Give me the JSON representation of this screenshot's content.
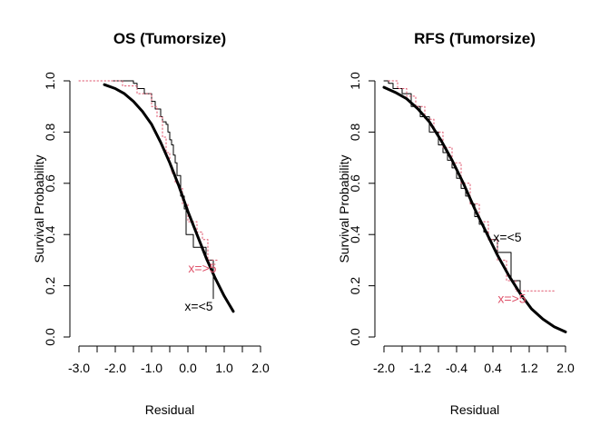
{
  "colors": {
    "fitted": "#000000",
    "group_lt5": "#000000",
    "group_ge5": "#DF536B"
  },
  "chart_data": [
    {
      "type": "line",
      "title": "OS (Tumorsize)",
      "xlabel": "Residual",
      "ylabel": "Survival Probability",
      "xlim": [
        -3.0,
        2.0
      ],
      "ylim": [
        0.0,
        1.0
      ],
      "x_ticks": [
        -3.0,
        -2.5,
        -2.0,
        -1.5,
        -1.0,
        -0.5,
        0.0,
        0.5,
        1.0,
        1.5,
        2.0
      ],
      "x_tick_labels": [
        "-3.0",
        "-2.0",
        "-1.0",
        "0.0",
        "1.0",
        "2.0"
      ],
      "x_tick_label_values": [
        -3.0,
        -2.0,
        -1.0,
        0.0,
        1.0,
        2.0
      ],
      "y_ticks": [
        0.0,
        0.2,
        0.4,
        0.6,
        0.8,
        1.0
      ],
      "y_tick_labels": [
        "0.0",
        "0.2",
        "0.4",
        "0.6",
        "0.8",
        "1.0"
      ],
      "grid": false,
      "series": [
        {
          "name": "x=<5",
          "style": "step",
          "color_key": "group_lt5",
          "x": [
            -2.1,
            -1.5,
            -1.4,
            -1.2,
            -1.0,
            -0.9,
            -0.75,
            -0.7,
            -0.6,
            -0.55,
            -0.5,
            -0.45,
            -0.4,
            -0.35,
            -0.3,
            -0.2,
            -0.1,
            -0.05,
            0.15,
            0.5,
            0.7
          ],
          "y": [
            1.0,
            0.99,
            0.97,
            0.95,
            0.92,
            0.89,
            0.86,
            0.84,
            0.83,
            0.8,
            0.77,
            0.75,
            0.71,
            0.68,
            0.63,
            0.55,
            0.5,
            0.4,
            0.35,
            0.3,
            0.15
          ]
        },
        {
          "name": "x=>5",
          "style": "step-dotted",
          "color_key": "group_ge5",
          "x": [
            -3.0,
            -1.8,
            -1.4,
            -1.0,
            -0.85,
            -0.7,
            -0.6,
            -0.5,
            -0.45,
            -0.35,
            -0.25,
            -0.15,
            0.0,
            0.25,
            0.4,
            0.55,
            0.85
          ],
          "y": [
            1.0,
            0.98,
            0.95,
            0.9,
            0.86,
            0.78,
            0.72,
            0.67,
            0.64,
            0.6,
            0.58,
            0.52,
            0.45,
            0.41,
            0.38,
            0.3,
            0.3
          ]
        },
        {
          "name": "",
          "style": "smooth-thick",
          "color_key": "fitted",
          "x": [
            -2.3,
            -2.0,
            -1.75,
            -1.5,
            -1.25,
            -1.0,
            -0.75,
            -0.5,
            -0.25,
            0.0,
            0.25,
            0.5,
            0.75,
            1.0,
            1.25
          ],
          "y": [
            0.985,
            0.97,
            0.95,
            0.92,
            0.88,
            0.83,
            0.76,
            0.68,
            0.59,
            0.49,
            0.4,
            0.31,
            0.23,
            0.16,
            0.1
          ]
        }
      ],
      "annotations": [
        {
          "text": "x=>5",
          "x": 0.4,
          "y": 0.27,
          "color_key": "group_ge5"
        },
        {
          "text": "x=<5",
          "x": 0.3,
          "y": 0.12,
          "color_key": "group_lt5"
        }
      ]
    },
    {
      "type": "line",
      "title": "RFS (Tumorsize)",
      "xlabel": "Residual",
      "ylabel": "Survival Probability",
      "xlim": [
        -2.0,
        2.0
      ],
      "ylim": [
        0.0,
        1.0
      ],
      "x_ticks": [
        -2.0,
        -1.6,
        -1.2,
        -0.8,
        -0.4,
        0.0,
        0.4,
        0.8,
        1.2,
        1.6,
        2.0
      ],
      "x_tick_labels": [
        "-2.0",
        "-1.2",
        "-0.4",
        "0.4",
        "1.2",
        "2.0"
      ],
      "x_tick_label_values": [
        -2.0,
        -1.2,
        -0.4,
        0.4,
        1.2,
        2.0
      ],
      "y_ticks": [
        0.0,
        0.2,
        0.4,
        0.6,
        0.8,
        1.0
      ],
      "y_tick_labels": [
        "0.0",
        "0.2",
        "0.4",
        "0.6",
        "0.8",
        "1.0"
      ],
      "grid": false,
      "series": [
        {
          "name": "x=<5",
          "style": "step",
          "color_key": "group_lt5",
          "x": [
            -2.0,
            -1.9,
            -1.8,
            -1.6,
            -1.4,
            -1.2,
            -1.0,
            -0.8,
            -0.7,
            -0.6,
            -0.5,
            -0.4,
            -0.3,
            -0.2,
            -0.1,
            0.0,
            0.1,
            0.2,
            0.3,
            0.5,
            0.8,
            1.0
          ],
          "y": [
            1.0,
            0.99,
            0.97,
            0.95,
            0.9,
            0.86,
            0.8,
            0.75,
            0.72,
            0.69,
            0.66,
            0.62,
            0.58,
            0.55,
            0.52,
            0.47,
            0.44,
            0.41,
            0.38,
            0.33,
            0.22,
            0.18
          ]
        },
        {
          "name": "x=>5",
          "style": "step-dotted",
          "color_key": "group_ge5",
          "x": [
            -1.9,
            -1.7,
            -1.5,
            -1.3,
            -1.1,
            -0.9,
            -0.7,
            -0.5,
            -0.3,
            -0.1,
            0.1,
            0.3,
            0.5,
            0.7,
            0.9,
            1.3,
            1.75
          ],
          "y": [
            1.0,
            0.97,
            0.94,
            0.9,
            0.85,
            0.8,
            0.74,
            0.68,
            0.6,
            0.52,
            0.45,
            0.38,
            0.3,
            0.22,
            0.18,
            0.18,
            0.18
          ]
        },
        {
          "name": "",
          "style": "smooth-thick",
          "color_key": "fitted",
          "x": [
            -2.0,
            -1.75,
            -1.5,
            -1.25,
            -1.0,
            -0.75,
            -0.5,
            -0.25,
            0.0,
            0.25,
            0.5,
            0.75,
            1.0,
            1.25,
            1.5,
            1.75,
            2.0
          ],
          "y": [
            0.975,
            0.955,
            0.93,
            0.89,
            0.84,
            0.77,
            0.69,
            0.6,
            0.5,
            0.41,
            0.32,
            0.24,
            0.17,
            0.11,
            0.07,
            0.04,
            0.02
          ]
        }
      ],
      "annotations": [
        {
          "text": "x=<5",
          "x": 0.72,
          "y": 0.39,
          "color_key": "group_lt5"
        },
        {
          "text": "x=>5",
          "x": 0.82,
          "y": 0.15,
          "color_key": "group_ge5"
        }
      ]
    }
  ]
}
